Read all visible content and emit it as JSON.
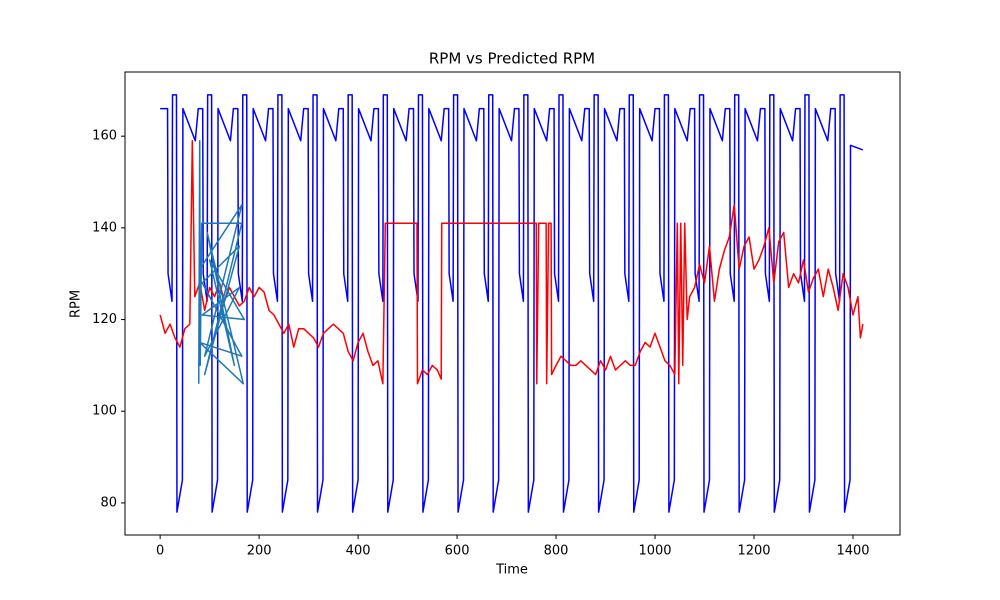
{
  "chart_data": {
    "type": "line",
    "title": "RPM vs Predicted RPM",
    "x_label": "Time",
    "y_label": "RPM",
    "xlim": [
      -71,
      1495
    ],
    "ylim": [
      73,
      174
    ],
    "xticks": [
      0,
      200,
      400,
      600,
      800,
      1000,
      1200,
      1400
    ],
    "yticks": [
      80,
      100,
      120,
      140,
      160
    ],
    "series": [
      {
        "color": "#0000ff",
        "x": [
          0,
          6,
          15,
          16,
          24,
          25,
          33,
          34,
          45,
          46,
          71,
          77,
          86,
          87,
          95,
          96,
          104,
          105,
          116,
          117,
          142,
          148,
          157,
          158,
          166,
          167,
          175,
          176,
          187,
          188,
          213,
          219,
          228,
          229,
          237,
          238,
          246,
          247,
          258,
          259,
          284,
          290,
          299,
          300,
          308,
          309,
          317,
          318,
          329,
          330,
          355,
          361,
          370,
          371,
          379,
          380,
          388,
          389,
          400,
          401,
          426,
          432,
          441,
          442,
          450,
          451,
          459,
          460,
          471,
          472,
          497,
          503,
          512,
          513,
          521,
          522,
          530,
          531,
          542,
          543,
          568,
          574,
          583,
          584,
          592,
          593,
          601,
          602,
          613,
          614,
          639,
          645,
          654,
          655,
          663,
          664,
          672,
          673,
          684,
          685,
          710,
          716,
          725,
          726,
          734,
          735,
          743,
          744,
          755,
          756,
          781,
          787,
          796,
          797,
          805,
          806,
          814,
          815,
          826,
          827,
          852,
          858,
          867,
          868,
          876,
          877,
          885,
          886,
          897,
          898,
          923,
          929,
          938,
          939,
          947,
          948,
          956,
          957,
          968,
          969,
          994,
          1000,
          1009,
          1010,
          1018,
          1019,
          1027,
          1028,
          1039,
          1040,
          1065,
          1071,
          1080,
          1081,
          1089,
          1090,
          1098,
          1099,
          1110,
          1111,
          1136,
          1142,
          1151,
          1152,
          1160,
          1161,
          1169,
          1170,
          1181,
          1182,
          1207,
          1213,
          1222,
          1223,
          1231,
          1232,
          1240,
          1241,
          1252,
          1253,
          1278,
          1284,
          1293,
          1294,
          1302,
          1303,
          1311,
          1312,
          1323,
          1324,
          1349,
          1355,
          1364,
          1365,
          1373,
          1374,
          1382,
          1383,
          1394,
          1395,
          1420
        ],
        "values": [
          166,
          166,
          166,
          130,
          124,
          169,
          169,
          78,
          85,
          166,
          159,
          166,
          166,
          130,
          124,
          169,
          169,
          78,
          85,
          166,
          159,
          166,
          166,
          130,
          124,
          169,
          169,
          78,
          85,
          166,
          159,
          166,
          166,
          130,
          124,
          169,
          169,
          78,
          85,
          166,
          159,
          166,
          166,
          130,
          124,
          169,
          169,
          78,
          85,
          166,
          159,
          166,
          166,
          130,
          124,
          169,
          169,
          78,
          85,
          166,
          159,
          166,
          166,
          130,
          124,
          169,
          169,
          78,
          85,
          166,
          159,
          166,
          166,
          130,
          124,
          169,
          169,
          78,
          85,
          166,
          159,
          166,
          166,
          130,
          124,
          169,
          169,
          78,
          85,
          166,
          159,
          166,
          166,
          130,
          124,
          169,
          169,
          78,
          85,
          166,
          159,
          166,
          166,
          130,
          124,
          169,
          169,
          78,
          85,
          166,
          159,
          166,
          166,
          130,
          124,
          169,
          169,
          78,
          85,
          166,
          159,
          166,
          166,
          130,
          124,
          169,
          169,
          78,
          85,
          166,
          159,
          166,
          166,
          130,
          124,
          169,
          169,
          78,
          85,
          166,
          159,
          166,
          166,
          130,
          124,
          169,
          169,
          78,
          85,
          166,
          159,
          166,
          166,
          130,
          124,
          169,
          169,
          78,
          85,
          166,
          159,
          166,
          166,
          130,
          124,
          169,
          169,
          78,
          85,
          166,
          159,
          166,
          166,
          130,
          124,
          169,
          169,
          78,
          85,
          166,
          159,
          166,
          166,
          130,
          124,
          169,
          169,
          78,
          85,
          166,
          159,
          166,
          166,
          130,
          124,
          169,
          169,
          78,
          85,
          158,
          157
        ]
      },
      {
        "color": "#ff0000",
        "x": [
          0,
          10,
          20,
          30,
          40,
          50,
          60,
          65,
          70,
          80,
          90,
          100,
          110,
          120,
          130,
          140,
          150,
          160,
          170,
          180,
          190,
          200,
          210,
          220,
          230,
          240,
          250,
          260,
          270,
          280,
          290,
          300,
          310,
          320,
          330,
          340,
          350,
          360,
          370,
          380,
          390,
          400,
          410,
          420,
          430,
          440,
          450,
          455,
          519,
          520,
          530,
          540,
          550,
          560,
          568,
          569,
          760,
          761,
          765,
          780,
          781,
          785,
          790,
          791,
          800,
          810,
          820,
          830,
          840,
          850,
          860,
          870,
          880,
          890,
          900,
          910,
          920,
          930,
          940,
          950,
          960,
          970,
          980,
          990,
          1000,
          1010,
          1020,
          1030,
          1040,
          1045,
          1048,
          1052,
          1056,
          1060,
          1065,
          1070,
          1080,
          1090,
          1100,
          1110,
          1120,
          1130,
          1140,
          1150,
          1160,
          1170,
          1180,
          1190,
          1200,
          1210,
          1220,
          1230,
          1240,
          1250,
          1260,
          1270,
          1280,
          1290,
          1300,
          1310,
          1320,
          1330,
          1340,
          1350,
          1360,
          1370,
          1380,
          1390,
          1400,
          1410,
          1415,
          1420
        ],
        "values": [
          121,
          117,
          119,
          116,
          114,
          118,
          119,
          159,
          125,
          128,
          122,
          127,
          125,
          128,
          124,
          127,
          125,
          123,
          124,
          127,
          125,
          127,
          126,
          122,
          121,
          119,
          117,
          119,
          114,
          118,
          118,
          117,
          116,
          114,
          117,
          118,
          119,
          118,
          117,
          113,
          111,
          115,
          117,
          113,
          110,
          111,
          106,
          141,
          141,
          106,
          109,
          108,
          110,
          109,
          107,
          141,
          141,
          106,
          141,
          141,
          106,
          141,
          141,
          108,
          110,
          112,
          111,
          110,
          110,
          111,
          110,
          109,
          108,
          111,
          109,
          112,
          109,
          110,
          111,
          110,
          110,
          113,
          115,
          114,
          117,
          114,
          111,
          110,
          108,
          141,
          106,
          141,
          110,
          141,
          120,
          125,
          127,
          132,
          128,
          136,
          124,
          131,
          135,
          138,
          145,
          131,
          136,
          138,
          131,
          133,
          136,
          140,
          128,
          137,
          139,
          127,
          130,
          128,
          133,
          126,
          129,
          131,
          125,
          131,
          127,
          122,
          130,
          127,
          121,
          125,
          116,
          119
        ]
      },
      {
        "color": "#1f77b4",
        "x": [
          78,
          80,
          81,
          84,
          165,
          90,
          160,
          85,
          165,
          80,
          168,
          95,
          150,
          100,
          170,
          85,
          160,
          90,
          165,
          80
        ],
        "values": [
          106,
          159,
          110,
          141,
          141,
          108,
          136,
          128,
          112,
          115,
          106,
          139,
          110,
          133,
          120,
          121,
          127,
          112,
          145,
          131
        ]
      }
    ]
  }
}
